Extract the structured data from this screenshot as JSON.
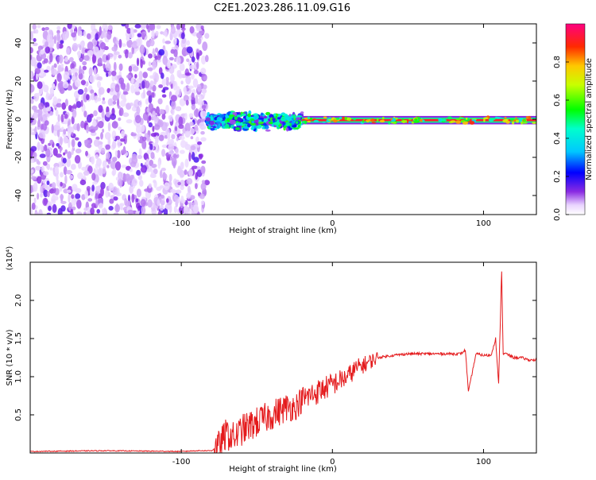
{
  "title": "C2E1.2023.286.11.09.G16",
  "colors": {
    "snr_line": "#e41a1c",
    "axis": "#000000",
    "background": "#ffffff"
  },
  "chart_data": [
    {
      "type": "heatmap",
      "title": "",
      "xlabel": "Height of straight line (km)",
      "ylabel": "Frequency (Hz)",
      "xlim": [
        -200,
        135
      ],
      "ylim": [
        -50,
        50
      ],
      "xticks": [
        -100,
        0,
        100
      ],
      "yticks": [
        -40,
        -20,
        0,
        20,
        40
      ],
      "grid": false,
      "colorbar": {
        "label": "Normalized spectral amplitude",
        "range": [
          0,
          1
        ],
        "ticks": [
          0.0,
          0.2,
          0.4,
          0.6,
          0.8
        ],
        "colormap": "rainbow"
      },
      "regions": [
        {
          "x_range": [
            -200,
            -83
          ],
          "freq_range": [
            -50,
            50
          ],
          "amplitude": "low-noise-scatter"
        },
        {
          "x_range": [
            -83,
            -20
          ],
          "freq_range": [
            -5,
            5
          ],
          "amplitude": "medium"
        },
        {
          "x_range": [
            -20,
            135
          ],
          "freq_range": [
            -2,
            1
          ],
          "amplitude": "high"
        }
      ]
    },
    {
      "type": "line",
      "title": "",
      "xlabel": "Height of straight line (km)",
      "ylabel": "SNR (10 * v/v)",
      "yscale_label": "(x10⁴)",
      "xlim": [
        -200,
        135
      ],
      "ylim": [
        0,
        2.5
      ],
      "xticks": [
        -100,
        0,
        100
      ],
      "yticks": [
        0.5,
        1.0,
        1.5,
        2.0
      ],
      "grid": false,
      "series": [
        {
          "x": [
            -200,
            -150,
            -100,
            -90,
            -80,
            -75,
            -70,
            -65,
            -60,
            -55,
            -50,
            -45,
            -40,
            -35,
            -30,
            -25,
            -20,
            -15,
            -10,
            -5,
            0,
            5,
            10,
            15,
            20,
            25,
            30,
            40,
            50,
            60,
            70,
            80,
            85,
            88,
            90,
            95,
            100,
            105,
            108,
            110,
            112,
            113,
            115,
            120,
            125,
            130,
            135
          ],
          "y": [
            0.02,
            0.03,
            0.02,
            0.03,
            0.03,
            0.1,
            0.25,
            0.2,
            0.3,
            0.35,
            0.4,
            0.45,
            0.5,
            0.55,
            0.6,
            0.6,
            0.7,
            0.75,
            0.8,
            0.85,
            0.9,
            0.95,
            1.0,
            1.1,
            1.15,
            1.2,
            1.25,
            1.28,
            1.3,
            1.3,
            1.3,
            1.3,
            1.3,
            1.35,
            0.8,
            1.3,
            1.28,
            1.28,
            1.5,
            0.9,
            2.4,
            1.3,
            1.3,
            1.25,
            1.25,
            1.22,
            1.22
          ]
        }
      ]
    }
  ]
}
